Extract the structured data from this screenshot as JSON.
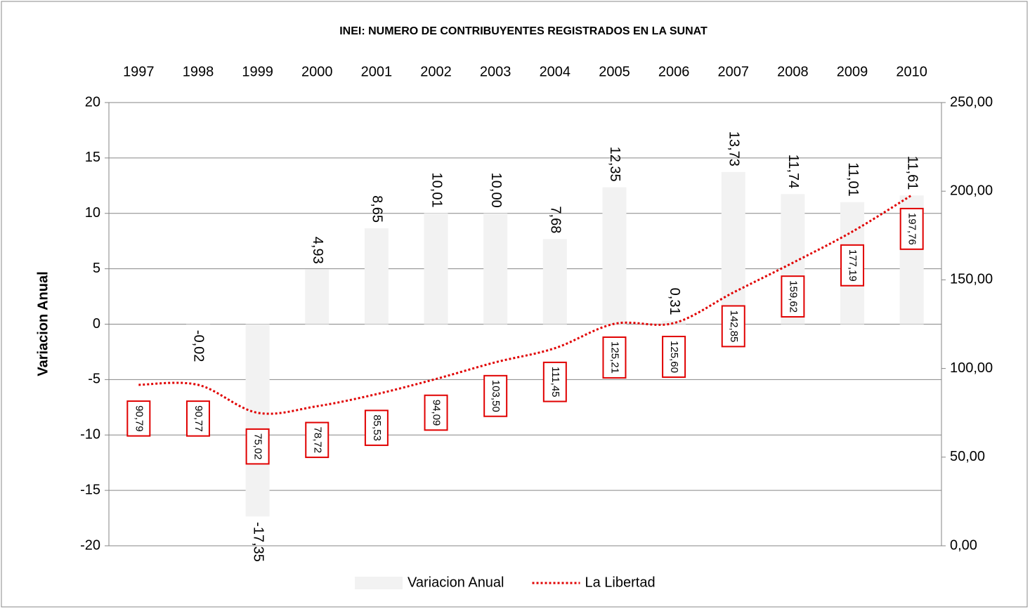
{
  "chart_data": {
    "type": "bar_line",
    "title": "INEI: NUMERO DE CONTRIBUYENTES REGISTRADOS EN LA SUNAT",
    "y_label": "Variacion Anual",
    "categories": [
      "1997",
      "1998",
      "1999",
      "2000",
      "2001",
      "2002",
      "2003",
      "2004",
      "2005",
      "2006",
      "2007",
      "2008",
      "2009",
      "2010"
    ],
    "series": [
      {
        "name": "Variacion Anual",
        "type": "bar",
        "color": "#f2f2f2",
        "values": [
          null,
          -0.02,
          -17.35,
          4.93,
          8.65,
          10.01,
          10.0,
          7.68,
          12.35,
          0.31,
          13.73,
          11.74,
          11.01,
          11.61
        ],
        "value_labels": [
          null,
          "-0,02",
          "-17,35",
          "4,93",
          "8,65",
          "10,01",
          "10,00",
          "7,68",
          "12,35",
          "0,31",
          "13,73",
          "11,74",
          "11,01",
          "11,61"
        ]
      },
      {
        "name": "La Libertad",
        "type": "line",
        "axis": "y2",
        "color": "#e00000",
        "values": [
          90.79,
          90.77,
          75.02,
          78.72,
          85.53,
          94.09,
          103.5,
          111.45,
          125.21,
          125.6,
          142.85,
          159.62,
          177.19,
          197.76
        ],
        "value_labels": [
          "90,79",
          "90,77",
          "75,02",
          "78,72",
          "85,53",
          "94,09",
          "103,50",
          "111,45",
          "125,21",
          "125,60",
          "142,85",
          "159,62",
          "177,19",
          "197,76"
        ]
      }
    ],
    "ylim": [
      -20,
      20
    ],
    "yticks": [
      -20,
      -15,
      -10,
      -5,
      0,
      5,
      10,
      15,
      20
    ],
    "y2lim": [
      0,
      250
    ],
    "y2ticks": [
      {
        "value": 0,
        "label": "0,00"
      },
      {
        "value": 50,
        "label": "50,00"
      },
      {
        "value": 100,
        "label": "100,00"
      },
      {
        "value": 150,
        "label": "150,00"
      },
      {
        "value": 200,
        "label": "200,00"
      },
      {
        "value": 250,
        "label": "250,00"
      }
    ],
    "grid": true,
    "legend": "bottom"
  }
}
